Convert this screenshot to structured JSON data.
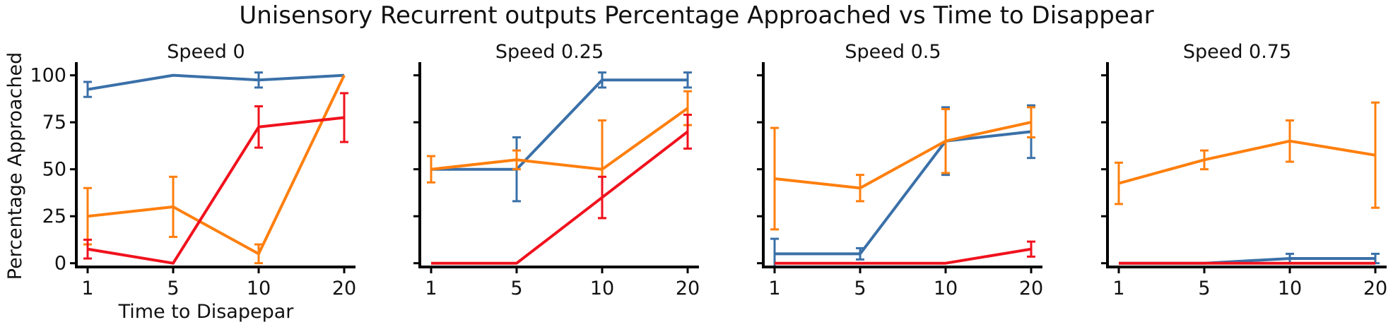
{
  "figure": {
    "suptitle": "Unisensory Recurrent outputs Percentage Approached vs Time to Disappear"
  },
  "chart_data": [
    {
      "type": "line",
      "title": "Speed 0",
      "xlabel": "Time to Disapepar",
      "ylabel": "Percentage Approached",
      "categories": [
        "1",
        "5",
        "10",
        "20"
      ],
      "y_ticks": [
        "0",
        "25",
        "50",
        "75",
        "100"
      ],
      "ylim": [
        -2,
        107
      ],
      "grid": false,
      "series": [
        {
          "color": "#3a70a8",
          "values": [
            92.5,
            100,
            97.5,
            100
          ],
          "err": [
            4,
            0,
            4,
            0
          ]
        },
        {
          "color": "#ff7f0e",
          "values": [
            25,
            30,
            5,
            100
          ],
          "err": [
            15,
            16,
            5,
            0
          ]
        },
        {
          "color": "#f0121d",
          "values": [
            7.5,
            0,
            72.5,
            77.5
          ],
          "err": [
            5,
            0,
            11,
            13
          ]
        }
      ]
    },
    {
      "type": "line",
      "title": "Speed 0.25",
      "xlabel": "",
      "ylabel": "",
      "categories": [
        "1",
        "5",
        "10",
        "20"
      ],
      "y_ticks": [
        "0",
        "25",
        "50",
        "75",
        "100"
      ],
      "ylim": [
        -2,
        107
      ],
      "grid": false,
      "series": [
        {
          "color": "#3a70a8",
          "values": [
            50,
            50,
            97.5,
            97.5
          ],
          "err": [
            0,
            17,
            4,
            4
          ]
        },
        {
          "color": "#ff7f0e",
          "values": [
            50,
            55,
            50,
            82.5
          ],
          "err": [
            7,
            5,
            26,
            9
          ]
        },
        {
          "color": "#f0121d",
          "values": [
            0,
            0,
            35,
            70
          ],
          "err": [
            0,
            0,
            11,
            9
          ]
        }
      ]
    },
    {
      "type": "line",
      "title": "Speed 0.5",
      "xlabel": "",
      "ylabel": "",
      "categories": [
        "1",
        "5",
        "10",
        "20"
      ],
      "y_ticks": [
        "0",
        "25",
        "50",
        "75",
        "100"
      ],
      "ylim": [
        -2,
        107
      ],
      "grid": false,
      "series": [
        {
          "color": "#3a70a8",
          "values": [
            5,
            5,
            65,
            70
          ],
          "err": [
            8,
            3,
            18,
            14
          ]
        },
        {
          "color": "#ff7f0e",
          "values": [
            45,
            40,
            65,
            75
          ],
          "err": [
            27,
            7,
            17,
            8
          ]
        },
        {
          "color": "#f0121d",
          "values": [
            0,
            0,
            0,
            7.5
          ],
          "err": [
            0,
            0,
            0,
            4
          ]
        }
      ]
    },
    {
      "type": "line",
      "title": "Speed 0.75",
      "xlabel": "",
      "ylabel": "",
      "categories": [
        "1",
        "5",
        "10",
        "20"
      ],
      "y_ticks": [
        "0",
        "25",
        "50",
        "75",
        "100"
      ],
      "ylim": [
        -2,
        107
      ],
      "grid": false,
      "series": [
        {
          "color": "#3a70a8",
          "values": [
            0,
            0,
            2.5,
            2.5
          ],
          "err": [
            0,
            0,
            2.5,
            2.5
          ]
        },
        {
          "color": "#ff7f0e",
          "values": [
            42.5,
            55,
            65,
            57.5
          ],
          "err": [
            11,
            5,
            11,
            28
          ]
        },
        {
          "color": "#f0121d",
          "values": [
            0,
            0,
            0,
            0
          ],
          "err": [
            0,
            0,
            0,
            0
          ]
        }
      ]
    }
  ]
}
